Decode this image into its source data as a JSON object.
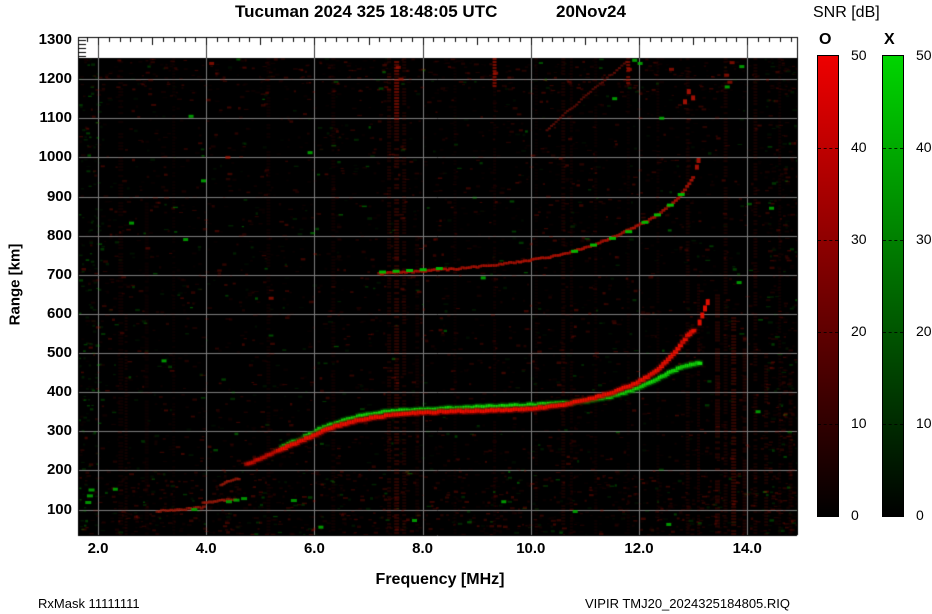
{
  "title": {
    "main": "Tucuman 2024 325 18:48:05 UTC",
    "date": "20Nov24"
  },
  "footer": {
    "left": "RxMask 11111111",
    "right": "VIPIR  TMJ20_2024325184805.RIQ"
  },
  "axes": {
    "x_label": "Frequency [MHz]",
    "y_label": "Range [km]",
    "x_ticks": [
      {
        "label": "2.0",
        "value": 2.0
      },
      {
        "label": "4.0",
        "value": 4.0
      },
      {
        "label": "6.0",
        "value": 6.0
      },
      {
        "label": "8.0",
        "value": 8.0
      },
      {
        "label": "10.0",
        "value": 10.0
      },
      {
        "label": "12.0",
        "value": 12.0
      },
      {
        "label": "14.0",
        "value": 14.0
      }
    ],
    "y_ticks": [
      {
        "label": "100",
        "value": 100
      },
      {
        "label": "200",
        "value": 200
      },
      {
        "label": "300",
        "value": 300
      },
      {
        "label": "400",
        "value": 400
      },
      {
        "label": "500",
        "value": 500
      },
      {
        "label": "600",
        "value": 600
      },
      {
        "label": "700",
        "value": 700
      },
      {
        "label": "800",
        "value": 800
      },
      {
        "label": "900",
        "value": 900
      },
      {
        "label": "1000",
        "value": 1000
      },
      {
        "label": "1100",
        "value": 1100
      },
      {
        "label": "1200",
        "value": 1200
      },
      {
        "label": "1300",
        "value": 1300
      }
    ]
  },
  "colorbar": {
    "title": "SNR [dB]",
    "o_label": "O",
    "x_label": "X",
    "ticks": [
      {
        "label": "0",
        "value": 0
      },
      {
        "label": "10",
        "value": 10
      },
      {
        "label": "20",
        "value": 20
      },
      {
        "label": "30",
        "value": 30
      },
      {
        "label": "40",
        "value": 40
      },
      {
        "label": "50",
        "value": 50
      }
    ],
    "o_top_color": "#ee0000",
    "x_top_color": "#00d500",
    "bottom_color": "#000000",
    "range": [
      0,
      50
    ]
  },
  "chart_data": {
    "type": "heatmap",
    "title": "Tucuman ionogram 2024 day 325 18:48:05 UTC",
    "xlabel": "Frequency [MHz]",
    "ylabel": "Range [km]",
    "x_range": [
      1.63,
      14.92
    ],
    "y_range": [
      35,
      1307.6
    ],
    "data_top_r": 1254,
    "grid": {
      "x_step": 2.0,
      "y_step": 100,
      "color": "#7d7d7d"
    },
    "background": "#000000",
    "colors": {
      "o_core": "#f61000",
      "o_halo": "#7a0800",
      "x_core": "#16e00c",
      "x_halo": "#005f00",
      "hop2_red": "#b01205",
      "hop2_green": "#00c000",
      "faint_red": "#7a1008",
      "es_red": "#a01a0a",
      "es_green": "#00aa00",
      "noise_red": "#aa1100",
      "noise_green": "#00bb00",
      "stripe_red": "#cc1500"
    },
    "series": [
      {
        "name": "O-mode first hop",
        "color": "#f61000",
        "points": [
          [
            4.75,
            215
          ],
          [
            5.0,
            230
          ],
          [
            5.25,
            246
          ],
          [
            5.55,
            263
          ],
          [
            5.9,
            284
          ],
          [
            6.3,
            308
          ],
          [
            6.65,
            323
          ],
          [
            7.1,
            336
          ],
          [
            7.75,
            346
          ],
          [
            8.5,
            351
          ],
          [
            9.2,
            353
          ],
          [
            9.9,
            357
          ],
          [
            10.5,
            365
          ],
          [
            11.05,
            381
          ],
          [
            11.5,
            399
          ],
          [
            11.9,
            420
          ],
          [
            12.25,
            447
          ],
          [
            12.5,
            477
          ],
          [
            12.72,
            510
          ],
          [
            12.9,
            545
          ],
          [
            13.05,
            562
          ]
        ],
        "dots": [
          [
            13.12,
            578
          ],
          [
            13.17,
            596
          ],
          [
            13.22,
            614
          ],
          [
            13.27,
            630
          ]
        ]
      },
      {
        "name": "X-mode first hop",
        "color": "#16e00c",
        "points": [
          [
            5.4,
            259
          ],
          [
            5.75,
            281
          ],
          [
            6.1,
            306
          ],
          [
            6.45,
            323
          ],
          [
            6.95,
            343
          ],
          [
            7.55,
            353
          ],
          [
            8.5,
            359
          ],
          [
            9.4,
            364
          ],
          [
            10.3,
            369
          ],
          [
            10.9,
            375
          ],
          [
            11.35,
            385
          ],
          [
            11.7,
            397
          ],
          [
            12.05,
            414
          ],
          [
            12.35,
            433
          ],
          [
            12.6,
            453
          ],
          [
            12.85,
            467
          ],
          [
            13.05,
            473
          ],
          [
            13.16,
            477
          ]
        ]
      },
      {
        "name": "second hop O-mode",
        "color": "#b01205",
        "points": [
          [
            7.2,
            703
          ],
          [
            7.6,
            706
          ],
          [
            8.05,
            710
          ],
          [
            8.6,
            715
          ],
          [
            9.2,
            723
          ],
          [
            9.8,
            733
          ],
          [
            10.3,
            744
          ],
          [
            10.7,
            756
          ],
          [
            11.05,
            770
          ],
          [
            11.4,
            789
          ],
          [
            11.7,
            807
          ],
          [
            11.95,
            823
          ],
          [
            12.2,
            841
          ],
          [
            12.45,
            863
          ],
          [
            12.68,
            890
          ],
          [
            12.85,
            917
          ],
          [
            12.97,
            940
          ],
          [
            13.03,
            955
          ]
        ],
        "dots": [
          [
            13.07,
            975
          ],
          [
            13.1,
            992
          ],
          [
            12.85,
            1142
          ],
          [
            12.92,
            1168
          ],
          [
            13.0,
            1152
          ]
        ]
      },
      {
        "name": "second hop X-mode dashes",
        "color": "#00c000",
        "dashes": [
          [
            7.25,
            707
          ],
          [
            7.5,
            709
          ],
          [
            7.75,
            711
          ],
          [
            8.0,
            713
          ],
          [
            8.3,
            716
          ],
          [
            10.8,
            760
          ],
          [
            11.15,
            776
          ],
          [
            11.5,
            793
          ],
          [
            11.8,
            810
          ],
          [
            12.1,
            834
          ],
          [
            12.33,
            853
          ],
          [
            12.57,
            878
          ],
          [
            12.77,
            905
          ]
        ]
      },
      {
        "name": "upper faint trace",
        "color": "#7a1008",
        "points": [
          [
            10.3,
            1070
          ],
          [
            10.55,
            1102
          ],
          [
            10.85,
            1136
          ],
          [
            11.15,
            1173
          ],
          [
            11.5,
            1213
          ],
          [
            11.82,
            1248
          ]
        ]
      },
      {
        "name": "sporadic-E segment A",
        "color": "#a01a0a",
        "points": [
          [
            3.1,
            96
          ],
          [
            3.4,
            99
          ],
          [
            3.7,
            102
          ],
          [
            4.0,
            106
          ]
        ]
      },
      {
        "name": "sporadic-E segment B",
        "color": "#a01a0a",
        "points": [
          [
            3.95,
            116
          ],
          [
            4.15,
            120
          ],
          [
            4.35,
            124
          ],
          [
            4.58,
            128
          ]
        ]
      },
      {
        "name": "sporadic-E arc C",
        "color": "#a01a0a",
        "points": [
          [
            4.28,
            163
          ],
          [
            4.4,
            172
          ],
          [
            4.52,
            178
          ],
          [
            4.64,
            180
          ]
        ]
      },
      {
        "name": "sporadic-E green dashes",
        "color": "#00aa00",
        "dashes": [
          [
            4.42,
            120
          ],
          [
            4.56,
            124
          ],
          [
            4.7,
            128
          ],
          [
            5.62,
            123
          ],
          [
            3.78,
            100
          ],
          [
            1.85,
            135
          ],
          [
            1.82,
            118
          ],
          [
            1.88,
            150
          ]
        ]
      }
    ],
    "green_specks": [
      [
        11.55,
        1150
      ],
      [
        11.92,
        1248
      ],
      [
        12.02,
        1240
      ],
      [
        3.95,
        940
      ],
      [
        3.62,
        790
      ],
      [
        13.63,
        1180
      ],
      [
        12.42,
        1100
      ],
      [
        13.9,
        1232
      ],
      [
        9.12,
        692
      ],
      [
        7.85,
        72
      ],
      [
        9.5,
        120
      ],
      [
        10.82,
        95
      ],
      [
        12.55,
        62
      ],
      [
        6.12,
        55
      ],
      [
        2.32,
        152
      ],
      [
        3.22,
        480
      ],
      [
        2.62,
        832
      ],
      [
        3.72,
        1105
      ],
      [
        5.92,
        1012
      ],
      [
        14.45,
        870
      ],
      [
        14.2,
        350
      ],
      [
        13.85,
        680
      ]
    ],
    "red_specks": [
      [
        13.62,
        1210
      ],
      [
        13.68,
        1192
      ],
      [
        13.72,
        1242
      ],
      [
        12.6,
        1225
      ],
      [
        7.6,
        1200
      ],
      [
        7.55,
        1230
      ],
      [
        9.35,
        1215
      ],
      [
        11.82,
        1225
      ],
      [
        4.1,
        1240
      ],
      [
        5.2,
        640
      ],
      [
        4.4,
        1000
      ]
    ],
    "rfi_stripes": [
      [
        2.42,
        5,
        35,
        1254,
        0.07
      ],
      [
        2.52,
        3,
        35,
        600,
        0.09
      ],
      [
        2.9,
        4,
        35,
        900,
        0.06
      ],
      [
        3.4,
        3,
        35,
        1254,
        0.05
      ],
      [
        5.15,
        4,
        35,
        1254,
        0.06
      ],
      [
        6.35,
        4,
        35,
        1254,
        0.07
      ],
      [
        7.38,
        4,
        35,
        1254,
        0.12
      ],
      [
        7.52,
        5,
        35,
        1254,
        0.2
      ],
      [
        7.52,
        5,
        1100,
        1254,
        0.35
      ],
      [
        7.66,
        4,
        35,
        1254,
        0.13
      ],
      [
        7.9,
        4,
        35,
        800,
        0.08
      ],
      [
        8.6,
        3,
        35,
        1254,
        0.05
      ],
      [
        9.33,
        4,
        1180,
        1254,
        0.55
      ],
      [
        9.33,
        3,
        35,
        1254,
        0.07
      ],
      [
        10.1,
        3,
        35,
        1254,
        0.05
      ],
      [
        10.6,
        4,
        35,
        1254,
        0.1
      ],
      [
        10.75,
        3,
        35,
        1254,
        0.07
      ],
      [
        11.2,
        3,
        35,
        1254,
        0.06
      ],
      [
        11.8,
        4,
        1190,
        1254,
        0.5
      ],
      [
        11.8,
        3,
        35,
        1254,
        0.05
      ],
      [
        12.35,
        3,
        35,
        1254,
        0.06
      ],
      [
        12.9,
        4,
        35,
        1254,
        0.09
      ],
      [
        13.1,
        3,
        35,
        700,
        0.1
      ],
      [
        13.45,
        5,
        35,
        650,
        0.18
      ],
      [
        13.6,
        4,
        35,
        1254,
        0.1
      ],
      [
        13.75,
        5,
        35,
        600,
        0.22
      ],
      [
        13.95,
        4,
        35,
        550,
        0.15
      ],
      [
        14.15,
        4,
        35,
        1254,
        0.1
      ],
      [
        14.35,
        4,
        35,
        500,
        0.12
      ],
      [
        14.6,
        3,
        35,
        1254,
        0.07
      ],
      [
        14.8,
        4,
        35,
        450,
        0.1
      ]
    ],
    "noise": {
      "seed": 20241125,
      "base": 3200,
      "bottom_extra": 700,
      "top_extra": 250,
      "left_green": 140,
      "right_edge": 260
    },
    "legend": {
      "o": "O",
      "x": "X",
      "units": "SNR [dB]",
      "position": "right"
    }
  }
}
